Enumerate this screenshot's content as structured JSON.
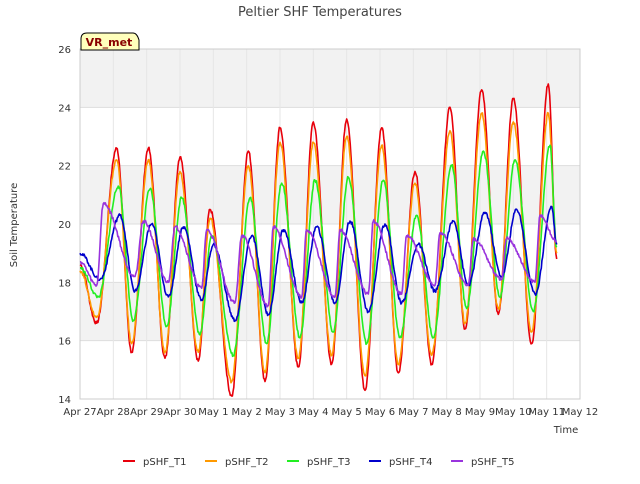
{
  "chart_data": {
    "type": "line",
    "title": "Peltier SHF Temperatures",
    "xlabel": "Time",
    "ylabel": "Soil Temperature",
    "badge": "VR_met",
    "x_ticks": [
      "Apr 27",
      "Apr 28",
      "Apr 29",
      "Apr 30",
      "May 1",
      "May 2",
      "May 3",
      "May 4",
      "May 5",
      "May 6",
      "May 7",
      "May 8",
      "May 9",
      "May 10",
      "May 11",
      "May 12"
    ],
    "y_ticks": [
      14,
      16,
      18,
      20,
      22,
      24,
      26
    ],
    "xlim": [
      0,
      15
    ],
    "ylim": [
      14,
      26
    ],
    "x_units": "days since Apr 27",
    "bands": "alternating light gray horizontal bands",
    "legend_position": "bottom",
    "colors": {
      "pSHF_T1": "#e8000b",
      "pSHF_T2": "#ff9900",
      "pSHF_T3": "#22ee22",
      "pSHF_T4": "#0000cc",
      "pSHF_T5": "#9933dd"
    },
    "series": [
      {
        "name": "pSHF_T1",
        "min_time": [
          0.5,
          1.55,
          2.55,
          3.55,
          4.55,
          5.55,
          6.55,
          7.55,
          8.55,
          9.55,
          10.55,
          11.55,
          12.55,
          13.55
        ],
        "max_time": [
          1.1,
          2.05,
          3.0,
          3.9,
          5.05,
          6.0,
          7.0,
          8.0,
          9.05,
          10.05,
          11.1,
          12.05,
          13.0,
          14.05
        ],
        "minima": [
          16.6,
          15.6,
          15.4,
          15.3,
          14.1,
          14.6,
          15.1,
          15.2,
          14.3,
          14.9,
          15.2,
          16.4,
          16.9,
          15.9
        ],
        "maxima": [
          22.6,
          22.6,
          22.3,
          20.5,
          22.5,
          23.3,
          23.5,
          23.6,
          23.3,
          21.8,
          24.0,
          24.6,
          24.3,
          24.8
        ],
        "start": 18.6,
        "end": 18.8
      },
      {
        "name": "pSHF_T2",
        "min_time": [
          0.5,
          1.55,
          2.55,
          3.55,
          4.55,
          5.55,
          6.55,
          7.55,
          8.55,
          9.55,
          10.55,
          11.55,
          12.55,
          13.55
        ],
        "max_time": [
          1.1,
          2.05,
          3.0,
          3.9,
          5.05,
          6.0,
          7.0,
          8.0,
          9.05,
          10.05,
          11.1,
          12.05,
          13.0,
          14.05
        ],
        "minima": [
          16.8,
          15.9,
          15.6,
          15.6,
          14.6,
          14.9,
          15.4,
          15.5,
          14.8,
          15.2,
          15.5,
          16.6,
          17.1,
          16.3
        ],
        "maxima": [
          22.2,
          22.2,
          21.8,
          20.2,
          22.0,
          22.8,
          22.8,
          23.0,
          22.7,
          21.4,
          23.2,
          23.8,
          23.5,
          23.8
        ],
        "start": 18.4,
        "end": 19.0
      },
      {
        "name": "pSHF_T3",
        "min_time": [
          0.55,
          1.6,
          2.6,
          3.6,
          4.6,
          5.6,
          6.6,
          7.6,
          8.6,
          9.6,
          10.6,
          11.6,
          12.6,
          13.6
        ],
        "max_time": [
          1.15,
          2.1,
          3.05,
          3.95,
          5.1,
          6.05,
          7.05,
          8.05,
          9.1,
          10.1,
          11.15,
          12.1,
          13.05,
          14.1
        ],
        "minima": [
          17.5,
          16.7,
          16.5,
          16.2,
          15.5,
          15.9,
          16.1,
          16.3,
          15.9,
          16.1,
          16.1,
          17.1,
          17.5,
          17.0
        ],
        "maxima": [
          21.3,
          21.2,
          20.9,
          19.6,
          20.9,
          21.4,
          21.5,
          21.6,
          21.5,
          20.3,
          22.0,
          22.5,
          22.2,
          22.7
        ],
        "start": 18.5,
        "end": 19.2
      },
      {
        "name": "pSHF_T4",
        "min_time": [
          0.6,
          1.65,
          2.65,
          3.65,
          4.65,
          5.65,
          6.65,
          7.65,
          8.65,
          9.65,
          10.65,
          11.65,
          12.65,
          13.65
        ],
        "max_time": [
          1.2,
          2.15,
          3.1,
          4.0,
          5.15,
          6.1,
          7.1,
          8.1,
          9.15,
          10.15,
          11.2,
          12.15,
          13.1,
          14.15
        ],
        "minima": [
          18.1,
          17.7,
          17.5,
          17.4,
          16.7,
          16.9,
          17.3,
          17.3,
          17.0,
          17.3,
          17.7,
          17.9,
          18.2,
          17.6
        ],
        "maxima": [
          20.3,
          20.0,
          19.9,
          19.3,
          19.6,
          19.8,
          19.9,
          20.1,
          20.0,
          19.3,
          20.1,
          20.4,
          20.5,
          20.6
        ],
        "start": 19.0,
        "end": 19.3
      },
      {
        "name": "pSHF_T5",
        "min_time": [
          0.5,
          1.65,
          2.65,
          3.65,
          4.65,
          5.65,
          6.65,
          7.65,
          8.65,
          9.65,
          10.65,
          11.65,
          12.65,
          13.65
        ],
        "max_time": [
          0.7,
          1.9,
          2.85,
          3.8,
          4.85,
          5.8,
          6.8,
          7.8,
          8.8,
          9.8,
          10.8,
          11.8,
          12.8,
          13.8
        ],
        "minima": [
          17.9,
          18.2,
          18.0,
          17.8,
          17.3,
          17.2,
          17.5,
          17.5,
          17.6,
          17.6,
          17.9,
          17.9,
          18.1,
          18.0
        ],
        "maxima": [
          20.7,
          20.1,
          19.9,
          19.8,
          19.6,
          19.9,
          19.8,
          19.8,
          20.1,
          19.6,
          19.7,
          19.5,
          19.5,
          20.3
        ],
        "start": 18.7,
        "end": 19.4
      }
    ]
  }
}
